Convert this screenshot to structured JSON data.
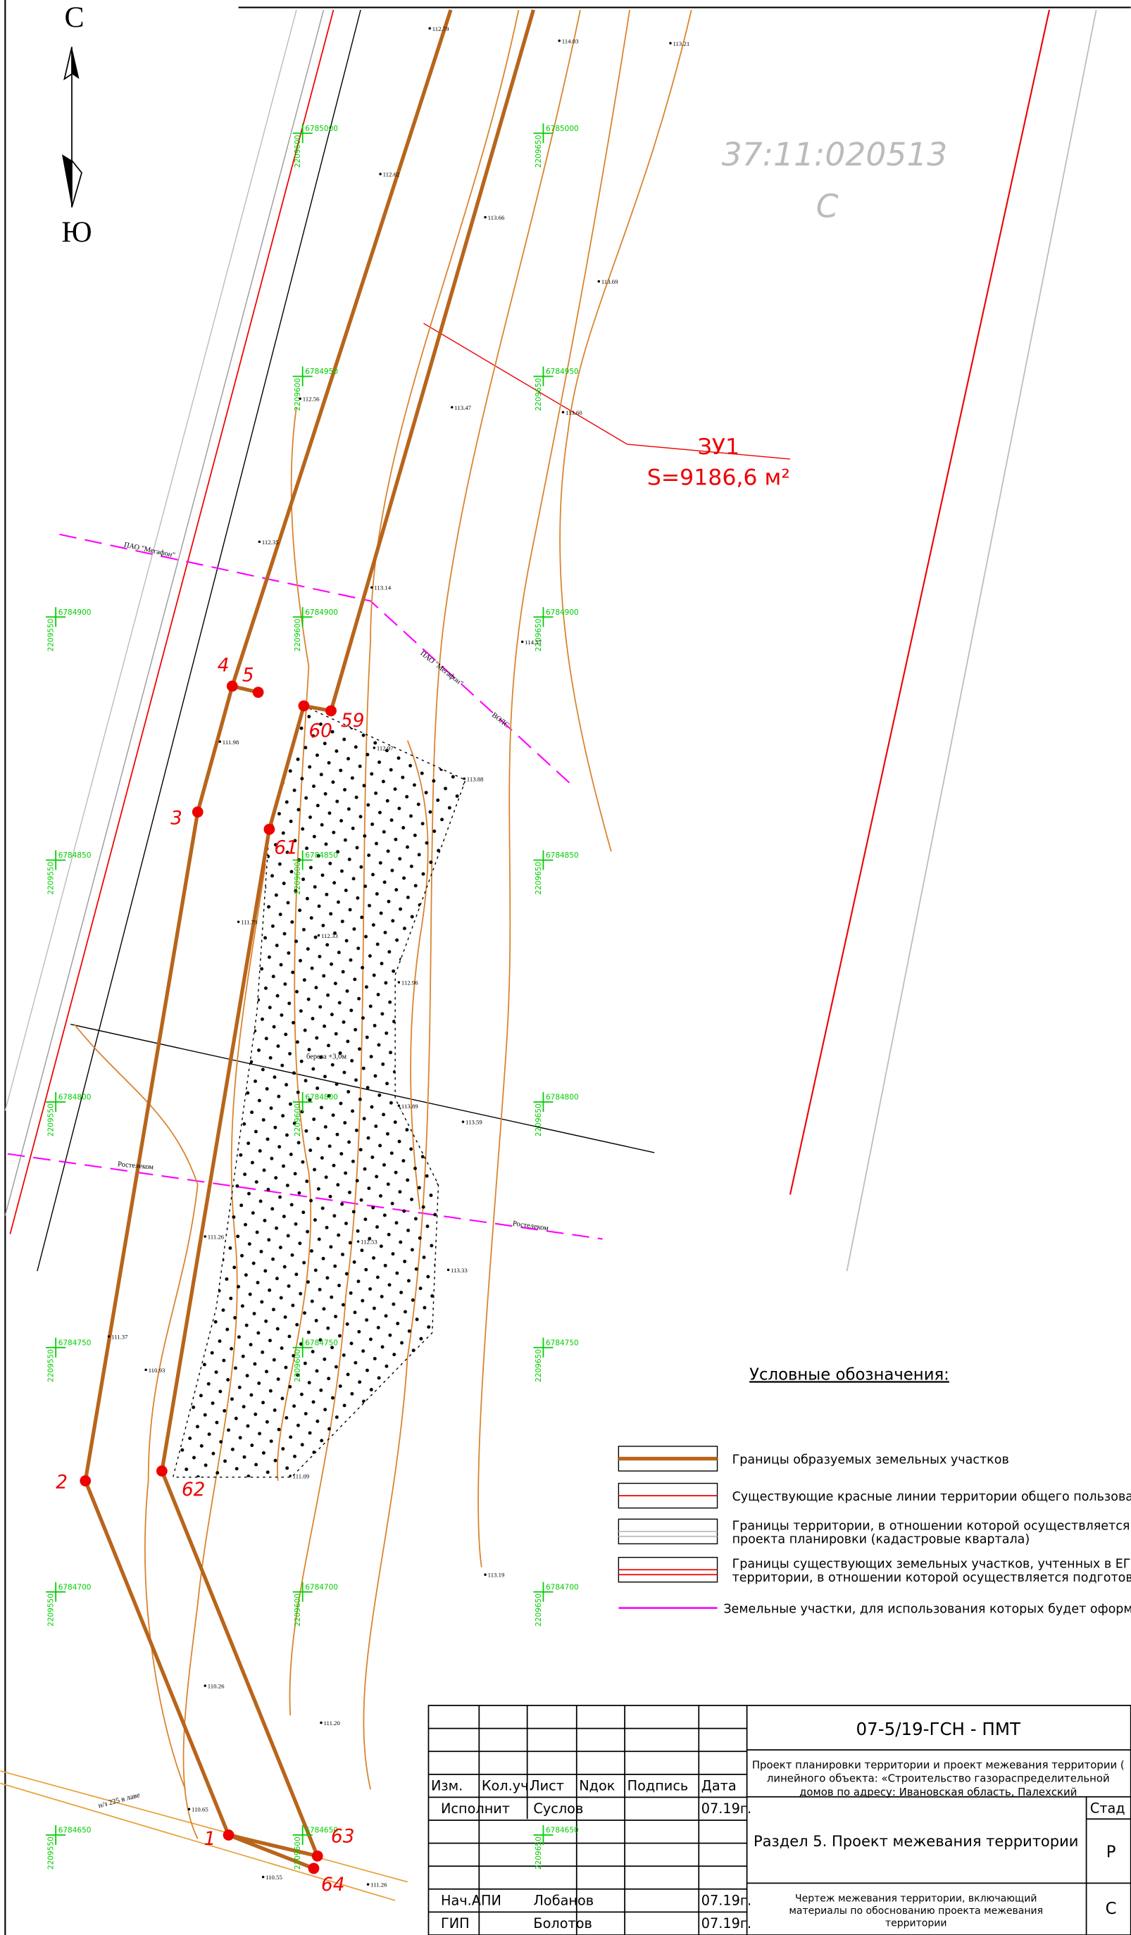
{
  "compass": {
    "north": "С",
    "south": "Ю"
  },
  "cadastral_block": {
    "number": "37:11:020513",
    "label": "С"
  },
  "parcel": {
    "name": "ЗУ1",
    "area": "S=9186,6 м²"
  },
  "points": [
    "1",
    "2",
    "3",
    "4",
    "5",
    "59",
    "60",
    "61",
    "62",
    "63",
    "64"
  ],
  "annotations": [
    "ПАО \"Мегафон\"",
    "ПАО \"Мегафон\"",
    "ВОЛС",
    "Ростелеком",
    "Ростелеком",
    "береза +3,0м",
    "н/з 225 в лаве"
  ],
  "elevations": [
    "112.79",
    "114.03",
    "113.21",
    "112.62",
    "113.66",
    "113.69",
    "112.56",
    "113.47",
    "113.60",
    "112.35",
    "113.14",
    "114.57",
    "112.97",
    "113.88",
    "111.98",
    "112.33",
    "112.96",
    "113.89",
    "113.59",
    "111.79",
    "112.53",
    "113.33",
    "111.26",
    "111.37",
    "110.93",
    "111.09",
    "113.19",
    "110.26",
    "111.20",
    "110.65",
    "111.26",
    "110.55"
  ],
  "grid": {
    "northings": [
      "6785000",
      "6784950",
      "6784900",
      "6784850",
      "6784800",
      "6784750",
      "6784700",
      "6784650"
    ],
    "eastings": [
      "2209550",
      "2209600",
      "2209650"
    ]
  },
  "legend": {
    "title": "Условные обозначения:",
    "items": [
      [
        "Границы образуемых земельных участков"
      ],
      [
        "Существующие красные линии территории общего пользования"
      ],
      [
        "Границы территории, в отношении которой осуществляется под",
        "проекта планировки (кадастровые квартала)"
      ],
      [
        "Границы существующих земельных участков, учтенных в ЕГР не",
        "территории, в отношении которой осуществляется подготовка"
      ],
      [
        "Земельные участки, для использования которых будет оформлен"
      ]
    ]
  },
  "title_block": {
    "code": "07-5/19-ГСН - ПМТ",
    "project": [
      "Проект планировки территории и проект межевания территории (",
      "линейного объекта: «Строительство газораспределительной",
      "домов по адресу: Ивановская область, Палехский"
    ],
    "headers": [
      "Изм.",
      "Кол.уч.",
      "Лист",
      "Nдок",
      "Подпись",
      "Дата"
    ],
    "people": [
      [
        "Исполнит",
        "Суслов",
        "07.19г."
      ],
      [
        "Нач.АПИ",
        "Лобанов",
        "07.19г."
      ],
      [
        "ГИП",
        "Болотов",
        "07.19г."
      ]
    ],
    "section": "Раздел 5. Проект межевания территории",
    "sheet": [
      "Чертеж межевания территории, включающий",
      "материалы по обоснованию проекта межевания",
      "территории"
    ],
    "stage_header": "Стад",
    "stage": "Р",
    "sheet_mark": "С"
  }
}
